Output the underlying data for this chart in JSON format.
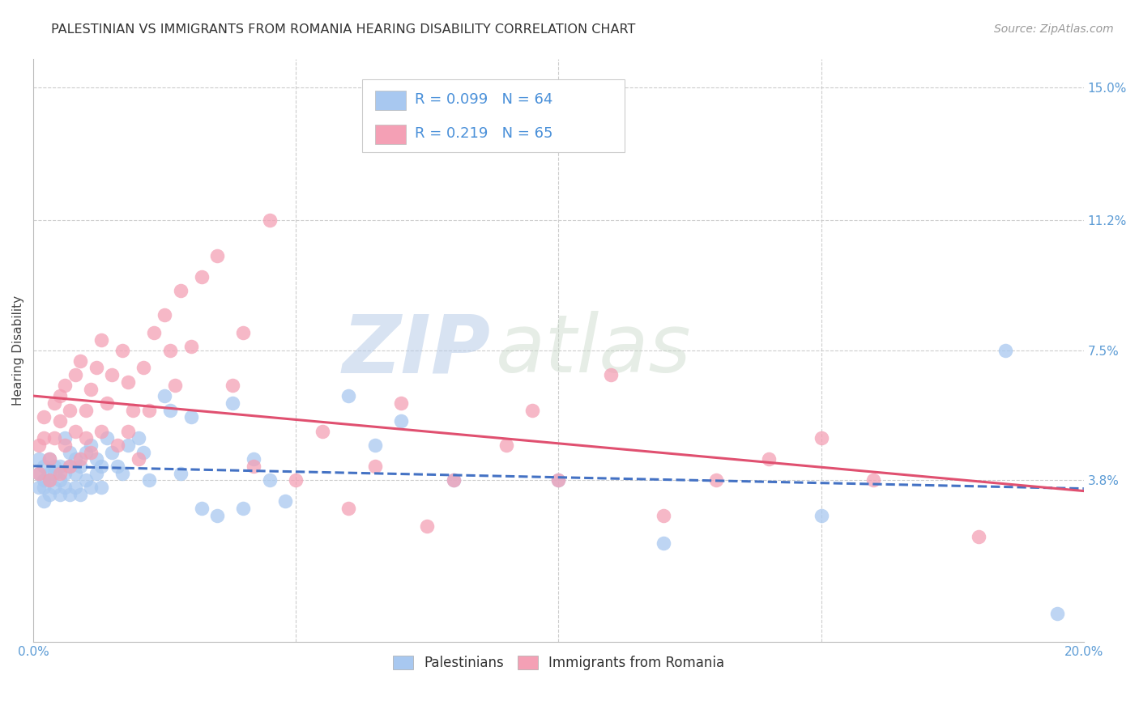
{
  "title": "PALESTINIAN VS IMMIGRANTS FROM ROMANIA HEARING DISABILITY CORRELATION CHART",
  "source": "Source: ZipAtlas.com",
  "ylabel": "Hearing Disability",
  "xlim": [
    0.0,
    0.2
  ],
  "ylim": [
    -0.008,
    0.158
  ],
  "yticks": [
    0.038,
    0.075,
    0.112,
    0.15
  ],
  "yticklabels": [
    "3.8%",
    "7.5%",
    "11.2%",
    "15.0%"
  ],
  "xticks": [
    0.0,
    0.05,
    0.1,
    0.15,
    0.2
  ],
  "xticklabels": [
    "0.0%",
    "",
    "",
    "",
    "20.0%"
  ],
  "background_color": "#ffffff",
  "grid_color": "#cccccc",
  "tick_color": "#5b9bd5",
  "series": [
    {
      "name": "Palestinians",
      "R": 0.099,
      "N": 64,
      "color": "#a8c8f0",
      "line_color": "#4472c4",
      "line_style": "--",
      "x": [
        0.001,
        0.001,
        0.001,
        0.002,
        0.002,
        0.002,
        0.002,
        0.003,
        0.003,
        0.003,
        0.003,
        0.004,
        0.004,
        0.004,
        0.005,
        0.005,
        0.005,
        0.006,
        0.006,
        0.006,
        0.007,
        0.007,
        0.007,
        0.008,
        0.008,
        0.008,
        0.009,
        0.009,
        0.01,
        0.01,
        0.011,
        0.011,
        0.012,
        0.012,
        0.013,
        0.013,
        0.014,
        0.015,
        0.016,
        0.017,
        0.018,
        0.02,
        0.021,
        0.022,
        0.025,
        0.026,
        0.028,
        0.03,
        0.032,
        0.035,
        0.038,
        0.04,
        0.042,
        0.045,
        0.048,
        0.06,
        0.065,
        0.07,
        0.08,
        0.1,
        0.12,
        0.15,
        0.185,
        0.195
      ],
      "y": [
        0.036,
        0.04,
        0.044,
        0.032,
        0.038,
        0.042,
        0.036,
        0.034,
        0.04,
        0.038,
        0.044,
        0.036,
        0.04,
        0.042,
        0.034,
        0.038,
        0.042,
        0.036,
        0.04,
        0.05,
        0.034,
        0.042,
        0.046,
        0.036,
        0.04,
        0.044,
        0.034,
        0.042,
        0.038,
        0.046,
        0.036,
        0.048,
        0.04,
        0.044,
        0.036,
        0.042,
        0.05,
        0.046,
        0.042,
        0.04,
        0.048,
        0.05,
        0.046,
        0.038,
        0.062,
        0.058,
        0.04,
        0.056,
        0.03,
        0.028,
        0.06,
        0.03,
        0.044,
        0.038,
        0.032,
        0.062,
        0.048,
        0.055,
        0.038,
        0.038,
        0.02,
        0.028,
        0.075,
        0.0
      ]
    },
    {
      "name": "Immigrants from Romania",
      "R": 0.219,
      "N": 65,
      "color": "#f4a0b5",
      "line_color": "#e05070",
      "line_style": "-",
      "x": [
        0.001,
        0.001,
        0.002,
        0.002,
        0.003,
        0.003,
        0.004,
        0.004,
        0.005,
        0.005,
        0.005,
        0.006,
        0.006,
        0.007,
        0.007,
        0.008,
        0.008,
        0.009,
        0.009,
        0.01,
        0.01,
        0.011,
        0.011,
        0.012,
        0.013,
        0.013,
        0.014,
        0.015,
        0.016,
        0.017,
        0.018,
        0.018,
        0.019,
        0.02,
        0.021,
        0.022,
        0.023,
        0.025,
        0.026,
        0.027,
        0.028,
        0.03,
        0.032,
        0.035,
        0.038,
        0.04,
        0.042,
        0.045,
        0.05,
        0.055,
        0.06,
        0.065,
        0.07,
        0.075,
        0.08,
        0.09,
        0.095,
        0.1,
        0.11,
        0.12,
        0.13,
        0.14,
        0.15,
        0.16,
        0.18
      ],
      "y": [
        0.04,
        0.048,
        0.05,
        0.056,
        0.038,
        0.044,
        0.06,
        0.05,
        0.055,
        0.062,
        0.04,
        0.048,
        0.065,
        0.042,
        0.058,
        0.052,
        0.068,
        0.044,
        0.072,
        0.05,
        0.058,
        0.064,
        0.046,
        0.07,
        0.052,
        0.078,
        0.06,
        0.068,
        0.048,
        0.075,
        0.052,
        0.066,
        0.058,
        0.044,
        0.07,
        0.058,
        0.08,
        0.085,
        0.075,
        0.065,
        0.092,
        0.076,
        0.096,
        0.102,
        0.065,
        0.08,
        0.042,
        0.112,
        0.038,
        0.052,
        0.03,
        0.042,
        0.06,
        0.025,
        0.038,
        0.048,
        0.058,
        0.038,
        0.068,
        0.028,
        0.038,
        0.044,
        0.05,
        0.038,
        0.022
      ]
    }
  ],
  "watermark_zip": "ZIP",
  "watermark_atlas": "atlas",
  "title_fontsize": 11.5,
  "axis_label_fontsize": 11,
  "tick_fontsize": 11,
  "legend_fontsize": 13,
  "source_fontsize": 10
}
